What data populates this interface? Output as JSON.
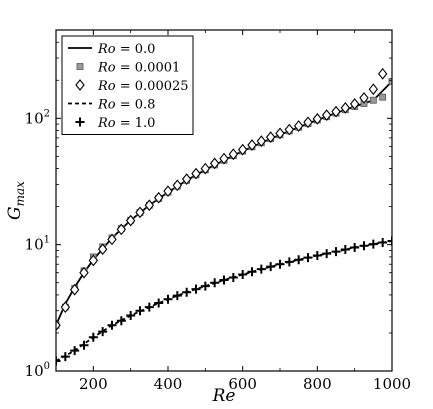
{
  "chart_data": {
    "type": "line",
    "title": "",
    "xlabel": "Re",
    "ylabel": "G_max",
    "ylabel_base": "G",
    "ylabel_sub": "max",
    "xlim": [
      100,
      1000
    ],
    "ylim": [
      1,
      500
    ],
    "yscale": "log",
    "xticks": [
      200,
      400,
      600,
      800,
      1000
    ],
    "xtick_labels": [
      "200",
      "400",
      "600",
      "800",
      "1000"
    ],
    "yticks": [
      1,
      10,
      100
    ],
    "ytick_bases": [
      "10",
      "10",
      "10"
    ],
    "ytick_exps": [
      "0",
      "1",
      "2"
    ],
    "grid": false,
    "legend_position": "top-left",
    "series": [
      {
        "name": "Ro = 0.0",
        "label_parts": [
          "Ro",
          " = 0.0"
        ],
        "marker": "line-solid",
        "x": [
          100,
          125,
          150,
          175,
          200,
          250,
          300,
          350,
          400,
          450,
          500,
          550,
          600,
          650,
          700,
          750,
          800,
          850,
          900,
          950,
          1000
        ],
        "y": [
          2.3,
          3.4,
          4.6,
          6.0,
          7.6,
          11.3,
          15.6,
          20.5,
          26.0,
          32.3,
          39.1,
          46.5,
          55.0,
          64.0,
          74.0,
          85.0,
          97.0,
          110.0,
          124.0,
          139.0,
          196.0
        ]
      },
      {
        "name": "Ro = 0.0001",
        "label_parts": [
          "Ro",
          " = 0.0001"
        ],
        "marker": "square",
        "x": [
          100,
          125,
          150,
          175,
          200,
          225,
          250,
          275,
          300,
          325,
          350,
          375,
          400,
          425,
          450,
          475,
          500,
          525,
          550,
          575,
          600,
          625,
          650,
          675,
          700,
          725,
          750,
          775,
          800,
          825,
          850,
          875,
          900,
          925,
          950,
          975,
          1000
        ],
        "y": [
          2.3,
          3.2,
          4.5,
          6.2,
          8.0,
          9.6,
          11.3,
          13.4,
          15.6,
          18.0,
          20.5,
          23.2,
          26.0,
          29.0,
          32.3,
          35.7,
          39.1,
          42.8,
          46.5,
          50.6,
          55.0,
          59.5,
          64.0,
          69.0,
          74.0,
          79.5,
          85.0,
          91.0,
          97.0,
          103.0,
          110.0,
          117.0,
          124.0,
          131.0,
          139.0,
          147.0,
          196.0
        ]
      },
      {
        "name": "Ro = 0.00025",
        "label_parts": [
          "Ro",
          " = 0.00025"
        ],
        "marker": "diamond",
        "x": [
          100,
          125,
          150,
          175,
          200,
          225,
          250,
          275,
          300,
          325,
          350,
          375,
          400,
          425,
          450,
          475,
          500,
          525,
          550,
          575,
          600,
          625,
          650,
          675,
          700,
          725,
          750,
          775,
          800,
          825,
          850,
          875,
          900,
          925,
          950,
          975
        ],
        "y": [
          2.3,
          3.2,
          4.4,
          6.0,
          7.5,
          9.2,
          11.0,
          13.2,
          15.5,
          18.0,
          20.5,
          23.5,
          26.5,
          29.5,
          33.0,
          36.5,
          40.0,
          44.0,
          48.0,
          52.0,
          56.5,
          61.5,
          66.0,
          71.0,
          76.0,
          81.5,
          87.0,
          93.0,
          99.0,
          106.0,
          113.0,
          121.0,
          130.0,
          145.0,
          170.0,
          225.0
        ]
      },
      {
        "name": "Ro = 0.8",
        "label_parts": [
          "Ro",
          " = 0.8"
        ],
        "marker": "line-dashed",
        "x": [
          100,
          150,
          200,
          250,
          300,
          350,
          400,
          450,
          500,
          550,
          600,
          650,
          700,
          750,
          800,
          850,
          900,
          950,
          1000
        ],
        "y": [
          1.2,
          1.45,
          1.85,
          2.3,
          2.75,
          3.2,
          3.7,
          4.2,
          4.7,
          5.25,
          5.8,
          6.4,
          7.0,
          7.6,
          8.2,
          8.8,
          9.5,
          10.1,
          10.7
        ]
      },
      {
        "name": "Ro = 1.0",
        "label_parts": [
          "Ro",
          " = 1.0"
        ],
        "marker": "plus",
        "x": [
          100,
          125,
          150,
          175,
          200,
          225,
          250,
          275,
          300,
          325,
          350,
          375,
          400,
          425,
          450,
          475,
          500,
          525,
          550,
          575,
          600,
          625,
          650,
          675,
          700,
          725,
          750,
          775,
          800,
          825,
          850,
          875,
          900,
          925,
          950,
          975,
          1000
        ],
        "y": [
          1.2,
          1.3,
          1.45,
          1.6,
          1.85,
          2.05,
          2.3,
          2.5,
          2.75,
          3.0,
          3.2,
          3.45,
          3.7,
          3.95,
          4.2,
          4.45,
          4.7,
          5.0,
          5.25,
          5.5,
          5.8,
          6.1,
          6.4,
          6.7,
          7.0,
          7.3,
          7.6,
          7.9,
          8.2,
          8.5,
          8.8,
          9.15,
          9.5,
          9.8,
          10.1,
          10.4,
          10.7
        ]
      }
    ]
  }
}
